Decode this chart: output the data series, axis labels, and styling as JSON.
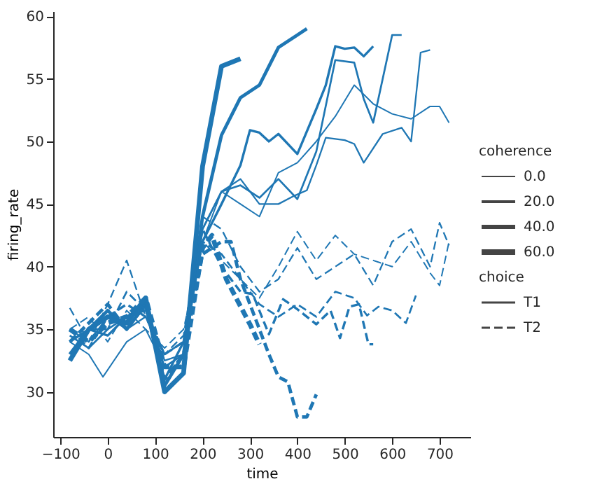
{
  "chart_data": {
    "type": "line",
    "xlabel": "time",
    "ylabel": "firing_rate",
    "xlim": [
      -115,
      765
    ],
    "ylim": [
      26.4,
      60.4
    ],
    "xticks": [
      -100,
      0,
      100,
      200,
      300,
      400,
      500,
      600,
      700
    ],
    "yticks": [
      30,
      35,
      40,
      45,
      50,
      55,
      60
    ],
    "grid": false,
    "legend_title": "coherence",
    "annotations": [
      "0.0",
      "20.0",
      "40.0",
      "60.0",
      "choice",
      "T1",
      "T2"
    ],
    "series": [
      {
        "color": "#1f77b4",
        "line_style": "solid",
        "x": [
          -80,
          -40,
          -10,
          40,
          80,
          120,
          160,
          200,
          240,
          280,
          320,
          360,
          400,
          440,
          480,
          520,
          560,
          600,
          640,
          680,
          700,
          720
        ],
        "values": [
          34,
          33,
          31.2,
          34,
          35,
          32,
          33,
          42,
          46,
          45,
          44,
          47.5,
          48.3,
          50,
          52,
          54.5,
          53,
          52.2,
          51.8,
          52.8,
          52.8,
          51.5
        ]
      },
      {
        "color": "#1f77b4",
        "line_style": "solid",
        "x": [
          -80,
          -40,
          0,
          40,
          80,
          120,
          160,
          200,
          240,
          280,
          320,
          360,
          390,
          420,
          440,
          460,
          500,
          520,
          540,
          580,
          620,
          640,
          660,
          680
        ],
        "values": [
          35,
          34,
          36,
          35,
          36,
          32.5,
          33,
          43,
          46,
          47,
          45,
          45,
          45.6,
          46.1,
          48.1,
          50.3,
          50.1,
          49.8,
          48.3,
          50.6,
          51.1,
          50,
          57.1,
          57.3
        ]
      },
      {
        "color": "#1f77b4",
        "line_style": "solid",
        "x": [
          -80,
          -40,
          0,
          40,
          80,
          120,
          160,
          200,
          240,
          280,
          320,
          360,
          400,
          440,
          480,
          520,
          540,
          560,
          600,
          620
        ],
        "values": [
          34.5,
          33.5,
          35,
          36,
          36.5,
          32,
          33,
          43,
          46,
          46.5,
          45.5,
          47,
          45.4,
          49.2,
          56.5,
          56.3,
          53.4,
          51.5,
          58.5,
          58.5
        ]
      },
      {
        "color": "#1f77b4",
        "line_style": "solid",
        "x": [
          -80,
          -40,
          0,
          40,
          80,
          120,
          160,
          200,
          240,
          280,
          300,
          320,
          340,
          360,
          400,
          440,
          460,
          480,
          500,
          520,
          540,
          560
        ],
        "values": [
          34,
          35,
          34.5,
          36,
          37,
          31,
          34,
          42,
          45,
          48.1,
          50.9,
          50.7,
          50,
          50.6,
          49,
          52.6,
          54.5,
          57.6,
          57.4,
          57.5,
          56.8,
          57.6
        ]
      },
      {
        "color": "#1f77b4",
        "line_style": "solid",
        "x": [
          -80,
          -40,
          0,
          40,
          80,
          120,
          160,
          200,
          240,
          280,
          320,
          360,
          400,
          420
        ],
        "values": [
          33,
          35,
          36.5,
          35,
          37,
          30.5,
          33,
          44,
          50.5,
          53.5,
          54.5,
          57.5,
          58.5,
          59
        ]
      },
      {
        "color": "#1f77b4",
        "line_style": "solid",
        "x": [
          -80,
          -40,
          0,
          40,
          80,
          120,
          160,
          200,
          240,
          280
        ],
        "values": [
          32.5,
          35,
          36,
          35.5,
          37.5,
          30,
          31.5,
          48,
          56,
          56.6
        ]
      },
      {
        "color": "#1f77b4",
        "line_style": "dashed",
        "x": [
          -80,
          -40,
          0,
          40,
          80,
          120,
          160,
          200,
          240,
          280,
          320,
          360,
          400,
          440,
          480,
          520,
          560,
          600,
          640,
          680,
          700,
          720
        ],
        "values": [
          35,
          36,
          34,
          36.5,
          35,
          33.5,
          35,
          42,
          40.5,
          39,
          37.5,
          40,
          42.8,
          40.5,
          42.5,
          41,
          40.5,
          40,
          42,
          39.5,
          38.5,
          42
        ]
      },
      {
        "color": "#1f77b4",
        "line_style": "dashed",
        "x": [
          -80,
          -40,
          0,
          40,
          80,
          120,
          160,
          200,
          240,
          280,
          320,
          360,
          400,
          440,
          480,
          520,
          560,
          600,
          640,
          680,
          700,
          720
        ],
        "values": [
          36.7,
          34,
          37,
          40.5,
          36,
          33,
          34.5,
          44,
          43,
          40,
          38,
          39,
          41.5,
          39,
          40,
          41,
          38.5,
          42,
          43,
          40,
          43.5,
          41.7
        ]
      },
      {
        "color": "#1f77b4",
        "line_style": "dashed",
        "x": [
          -80,
          -40,
          0,
          40,
          80,
          120,
          160,
          200,
          240,
          280,
          320,
          360,
          400,
          440,
          480,
          520,
          547,
          571,
          600,
          629,
          650
        ],
        "values": [
          34,
          35,
          35,
          38,
          36.5,
          33,
          34,
          42,
          41,
          39,
          37,
          36,
          37,
          36,
          38,
          37.5,
          36.1,
          36.8,
          36.5,
          35.5,
          37.7
        ]
      },
      {
        "color": "#1f77b4",
        "line_style": "dashed",
        "x": [
          -80,
          -40,
          0,
          40,
          80,
          120,
          160,
          200,
          240,
          280,
          306,
          340,
          370,
          400,
          440,
          470,
          490,
          510,
          530,
          550,
          560
        ],
        "values": [
          35,
          33.5,
          36,
          37,
          36,
          33,
          34,
          43,
          40,
          38,
          37.8,
          34.6,
          37.4,
          36.6,
          35.4,
          36.5,
          34.3,
          36.8,
          37,
          33.8,
          33.8
        ]
      },
      {
        "color": "#1f77b4",
        "line_style": "dashed",
        "x": [
          -80,
          -40,
          0,
          40,
          80,
          120,
          160,
          200,
          240,
          260,
          280,
          300,
          320,
          340,
          360,
          380,
          400,
          420,
          440
        ],
        "values": [
          34,
          35.5,
          37,
          35,
          37,
          31,
          33,
          41,
          42,
          42,
          39,
          37,
          35,
          33,
          31.2,
          30.8,
          28,
          28,
          29.8
        ]
      },
      {
        "color": "#1f77b4",
        "line_style": "dashed",
        "x": [
          -80,
          -40,
          0,
          40,
          80,
          120,
          160,
          200,
          220,
          250,
          300,
          320
        ],
        "values": [
          35,
          34,
          35.5,
          36,
          37.5,
          32,
          32,
          41.5,
          42.5,
          39,
          35.4,
          33.8
        ]
      }
    ]
  }
}
